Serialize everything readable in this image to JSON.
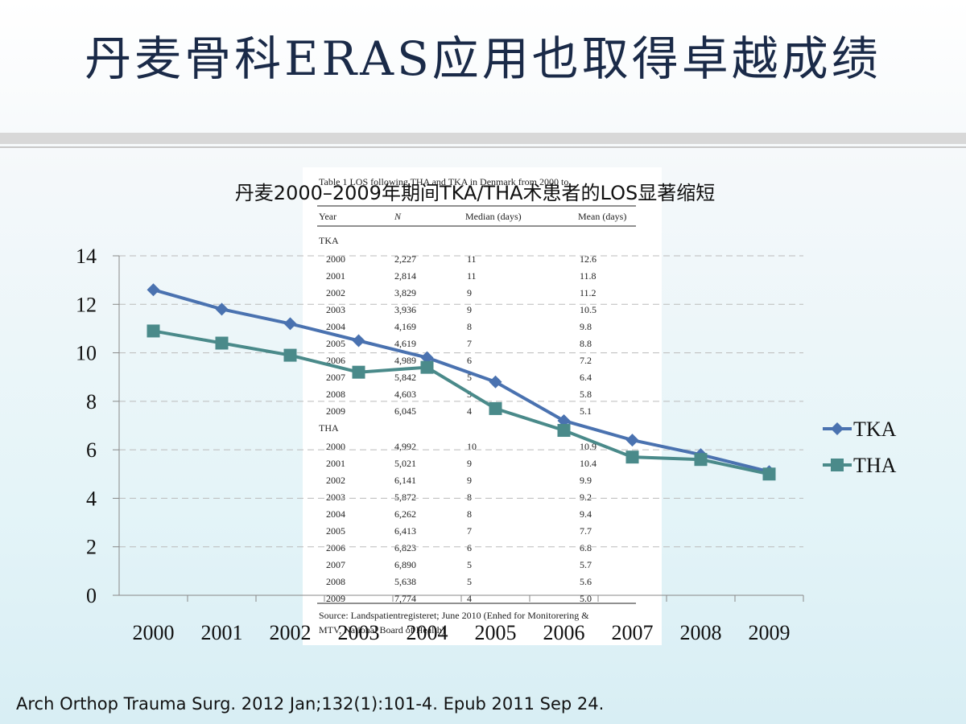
{
  "slide": {
    "title": "丹麦骨科ERAS应用也取得卓越成绩",
    "footnote": "Arch Orthop Trauma Surg. 2012 Jan;132(1):101-4. Epub 2011 Sep 24."
  },
  "table": {
    "caption": "Table 1 LOS following THA and TKA in Denmark from 2000 to",
    "columns": [
      "Year",
      "N",
      "Median (days)",
      "Mean (days)"
    ],
    "sections": [
      {
        "label": "TKA",
        "rows": [
          [
            "2000",
            "2,227",
            "11",
            "12.6"
          ],
          [
            "2001",
            "2,814",
            "11",
            "11.8"
          ],
          [
            "2002",
            "3,829",
            "9",
            "11.2"
          ],
          [
            "2003",
            "3,936",
            "9",
            "10.5"
          ],
          [
            "2004",
            "4,169",
            "8",
            "9.8"
          ],
          [
            "2005",
            "4,619",
            "7",
            "8.8"
          ],
          [
            "2006",
            "4,989",
            "6",
            "7.2"
          ],
          [
            "2007",
            "5,842",
            "5",
            "6.4"
          ],
          [
            "2008",
            "4,603",
            "5",
            "5.8"
          ],
          [
            "2009",
            "6,045",
            "4",
            "5.1"
          ]
        ]
      },
      {
        "label": "THA",
        "rows": [
          [
            "2000",
            "4,992",
            "10",
            "10.9"
          ],
          [
            "2001",
            "5,021",
            "9",
            "10.4"
          ],
          [
            "2002",
            "6,141",
            "9",
            "9.9"
          ],
          [
            "2003",
            "5,872",
            "8",
            "9.2"
          ],
          [
            "2004",
            "6,262",
            "8",
            "9.4"
          ],
          [
            "2005",
            "6,413",
            "7",
            "7.7"
          ],
          [
            "2006",
            "6,823",
            "6",
            "6.8"
          ],
          [
            "2007",
            "6,890",
            "5",
            "5.7"
          ],
          [
            "2008",
            "5,638",
            "5",
            "5.6"
          ],
          [
            "2009",
            "7,774",
            "4",
            "5.0"
          ]
        ]
      }
    ],
    "source": [
      "Source: Landspatientregisteret; June 2010 (Enhed for Monitorering &",
      "MTV, National Board of Health)"
    ]
  },
  "chart_data": {
    "type": "line",
    "subtitle": "丹麦2000–2009年期间TKA/THA术患者的LOS显著缩短",
    "categories": [
      "2000",
      "2001",
      "2002",
      "2003",
      "2004",
      "2005",
      "2006",
      "2007",
      "2008",
      "2009"
    ],
    "series": [
      {
        "name": "TKA",
        "color": "#4a72b0",
        "marker": "diamond",
        "values": [
          12.6,
          11.8,
          11.2,
          10.5,
          9.8,
          8.8,
          7.2,
          6.4,
          5.8,
          5.1
        ]
      },
      {
        "name": "THA",
        "color": "#4a8a8a",
        "marker": "square",
        "values": [
          10.9,
          10.4,
          9.9,
          9.2,
          9.4,
          7.7,
          6.8,
          5.7,
          5.6,
          5.0
        ]
      }
    ],
    "ylim": [
      0,
      14
    ],
    "yticks": [
      0,
      2,
      4,
      6,
      8,
      10,
      12,
      14
    ],
    "grid": true,
    "legend": "right"
  }
}
